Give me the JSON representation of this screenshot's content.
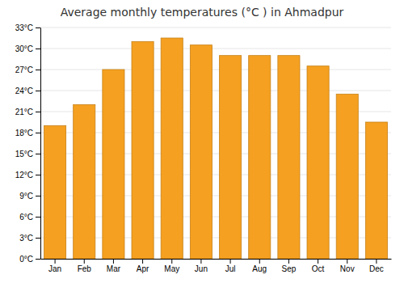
{
  "chart_data": {
    "type": "bar",
    "title": "Average monthly temperatures (°C ) in Ahmadpur",
    "categories": [
      "Jan",
      "Feb",
      "Mar",
      "Apr",
      "May",
      "Jun",
      "Jul",
      "Aug",
      "Sep",
      "Oct",
      "Nov",
      "Dec"
    ],
    "values": [
      19.0,
      22.0,
      27.0,
      31.0,
      31.5,
      30.5,
      29.0,
      29.0,
      29.0,
      27.5,
      23.5,
      19.5
    ],
    "color": "#F5A020",
    "ylim": [
      0,
      33
    ],
    "yticks": [
      {
        "value": 0,
        "label": "0°C"
      },
      {
        "value": 3,
        "label": "3°C"
      },
      {
        "value": 6,
        "label": "6°C"
      },
      {
        "value": 9,
        "label": "9°C"
      },
      {
        "value": 12,
        "label": "12°C"
      },
      {
        "value": 15,
        "label": "15°C"
      },
      {
        "value": 18,
        "label": "18°C"
      },
      {
        "value": 21,
        "label": "21°C"
      },
      {
        "value": 24,
        "label": "24°C"
      },
      {
        "value": 27,
        "label": "27°C"
      },
      {
        "value": 30,
        "label": "30°C"
      },
      {
        "value": 33,
        "label": "33°C"
      }
    ],
    "grid": true
  }
}
